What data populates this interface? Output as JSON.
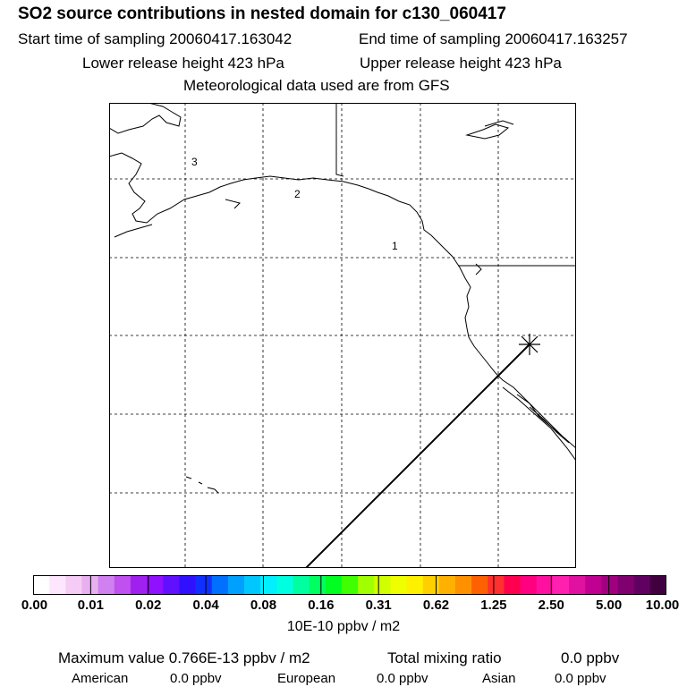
{
  "header": {
    "title": "SO2 source contributions in nested domain for c130_060417",
    "start_time": "Start time of sampling 20060417.163042",
    "end_time": "End time of sampling 20060417.163257",
    "lower_release": "Lower release height  423 hPa",
    "upper_release": "Upper release height  423 hPa",
    "met_data": "Meteorological data used are from GFS"
  },
  "map": {
    "labels": [
      "1",
      "2",
      "3"
    ]
  },
  "colorbar": {
    "colors": [
      "#ffffff",
      "#ffe6ff",
      "#f5ccf5",
      "#e8b0f0",
      "#d080f0",
      "#c050f0",
      "#a020f0",
      "#9010ff",
      "#6010ff",
      "#3010ff",
      "#1030ff",
      "#0070ff",
      "#00a0ff",
      "#00c8ff",
      "#00f0ff",
      "#00ffe0",
      "#00ffa0",
      "#00ff60",
      "#00ff20",
      "#40ff00",
      "#a0ff00",
      "#d0ff00",
      "#f0ff00",
      "#fff000",
      "#ffd000",
      "#ffb000",
      "#ff9000",
      "#ff6000",
      "#ff3030",
      "#ff0050",
      "#ff0080",
      "#ff10a0",
      "#ff20b0",
      "#e010a0",
      "#c00090",
      "#a00080",
      "#800070",
      "#600060",
      "#400040"
    ],
    "ticks": [
      "0.00",
      "0.01",
      "0.02",
      "0.04",
      "0.08",
      "0.16",
      "0.31",
      "0.62",
      "1.25",
      "2.50",
      "5.00",
      "10.00"
    ],
    "units": "10E-10 ppbv / m2"
  },
  "footer": {
    "max_value": "Maximum value  0.766E-13 ppbv / m2",
    "total_label": "Total mixing ratio",
    "total_value": "0.0 ppbv",
    "american_label": "American",
    "american_value": "0.0 ppbv",
    "european_label": "European",
    "european_value": "0.0 ppbv",
    "asian_label": "Asian",
    "asian_value": "0.0 ppbv"
  }
}
